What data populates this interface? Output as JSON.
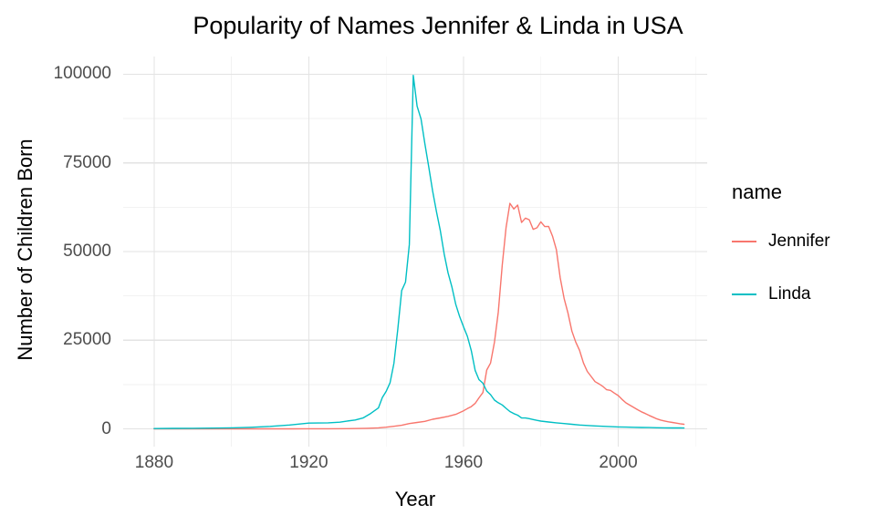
{
  "chart_data": {
    "type": "line",
    "title": "Popularity of Names Jennifer & Linda in USA",
    "xlabel": "Year",
    "ylabel": "Number of Children Born",
    "legend_title": "name",
    "legend_position": "right",
    "grid": true,
    "xlim": [
      1872,
      2023
    ],
    "ylim": [
      -5000,
      105000
    ],
    "x_ticks": [
      1880,
      1920,
      1960,
      2000
    ],
    "y_ticks": [
      0,
      25000,
      50000,
      75000,
      100000
    ],
    "x_minor_ticks": [
      1900,
      1940,
      1980,
      2020
    ],
    "y_minor_ticks": [
      12500,
      37500,
      62500,
      87500
    ],
    "series": [
      {
        "name": "Jennifer",
        "color": "#F8766D",
        "points": [
          [
            1880,
            0
          ],
          [
            1890,
            0
          ],
          [
            1900,
            0
          ],
          [
            1910,
            0
          ],
          [
            1916,
            5
          ],
          [
            1920,
            25
          ],
          [
            1925,
            40
          ],
          [
            1930,
            60
          ],
          [
            1935,
            160
          ],
          [
            1938,
            300
          ],
          [
            1940,
            470
          ],
          [
            1942,
            730
          ],
          [
            1944,
            1010
          ],
          [
            1946,
            1500
          ],
          [
            1948,
            1800
          ],
          [
            1950,
            2120
          ],
          [
            1952,
            2700
          ],
          [
            1954,
            3100
          ],
          [
            1956,
            3540
          ],
          [
            1958,
            4090
          ],
          [
            1960,
            5090
          ],
          [
            1961,
            5730
          ],
          [
            1962,
            6280
          ],
          [
            1963,
            7180
          ],
          [
            1964,
            8760
          ],
          [
            1965,
            10240
          ],
          [
            1966,
            16580
          ],
          [
            1967,
            18560
          ],
          [
            1968,
            24500
          ],
          [
            1969,
            33000
          ],
          [
            1970,
            46160
          ],
          [
            1971,
            56780
          ],
          [
            1972,
            63600
          ],
          [
            1973,
            62000
          ],
          [
            1974,
            63110
          ],
          [
            1975,
            58190
          ],
          [
            1976,
            59440
          ],
          [
            1977,
            58960
          ],
          [
            1978,
            56260
          ],
          [
            1979,
            56710
          ],
          [
            1980,
            58390
          ],
          [
            1981,
            57030
          ],
          [
            1982,
            57090
          ],
          [
            1983,
            54340
          ],
          [
            1984,
            50560
          ],
          [
            1985,
            42660
          ],
          [
            1986,
            36800
          ],
          [
            1987,
            32700
          ],
          [
            1988,
            27600
          ],
          [
            1989,
            24500
          ],
          [
            1990,
            22170
          ],
          [
            1991,
            18600
          ],
          [
            1992,
            16200
          ],
          [
            1993,
            14800
          ],
          [
            1994,
            13330
          ],
          [
            1995,
            12700
          ],
          [
            1996,
            12000
          ],
          [
            1997,
            11050
          ],
          [
            1998,
            10850
          ],
          [
            1999,
            10080
          ],
          [
            2000,
            9390
          ],
          [
            2001,
            8300
          ],
          [
            2002,
            7330
          ],
          [
            2003,
            6700
          ],
          [
            2004,
            6040
          ],
          [
            2005,
            5400
          ],
          [
            2006,
            4830
          ],
          [
            2007,
            4340
          ],
          [
            2008,
            3800
          ],
          [
            2009,
            3290
          ],
          [
            2010,
            2810
          ],
          [
            2011,
            2480
          ],
          [
            2012,
            2230
          ],
          [
            2013,
            2000
          ],
          [
            2014,
            1810
          ],
          [
            2015,
            1640
          ],
          [
            2016,
            1450
          ],
          [
            2017,
            1300
          ]
        ]
      },
      {
        "name": "Linda",
        "color": "#00BFC4",
        "points": [
          [
            1880,
            100
          ],
          [
            1885,
            130
          ],
          [
            1890,
            160
          ],
          [
            1895,
            220
          ],
          [
            1900,
            300
          ],
          [
            1905,
            460
          ],
          [
            1910,
            700
          ],
          [
            1915,
            1100
          ],
          [
            1920,
            1620
          ],
          [
            1925,
            1700
          ],
          [
            1928,
            1900
          ],
          [
            1930,
            2230
          ],
          [
            1932,
            2500
          ],
          [
            1934,
            3060
          ],
          [
            1936,
            4360
          ],
          [
            1938,
            5900
          ],
          [
            1939,
            8850
          ],
          [
            1940,
            10580
          ],
          [
            1941,
            13030
          ],
          [
            1942,
            18480
          ],
          [
            1943,
            28000
          ],
          [
            1944,
            39000
          ],
          [
            1945,
            41400
          ],
          [
            1946,
            52000
          ],
          [
            1947,
            99690
          ],
          [
            1948,
            91000
          ],
          [
            1949,
            87400
          ],
          [
            1950,
            80440
          ],
          [
            1951,
            73980
          ],
          [
            1952,
            67090
          ],
          [
            1953,
            61270
          ],
          [
            1954,
            55960
          ],
          [
            1955,
            49280
          ],
          [
            1956,
            44000
          ],
          [
            1957,
            39940
          ],
          [
            1958,
            35060
          ],
          [
            1959,
            31680
          ],
          [
            1960,
            28760
          ],
          [
            1961,
            26100
          ],
          [
            1962,
            22050
          ],
          [
            1963,
            16500
          ],
          [
            1964,
            13900
          ],
          [
            1965,
            12900
          ],
          [
            1966,
            10670
          ],
          [
            1967,
            9650
          ],
          [
            1968,
            8100
          ],
          [
            1969,
            7360
          ],
          [
            1970,
            6750
          ],
          [
            1971,
            5800
          ],
          [
            1972,
            4900
          ],
          [
            1973,
            4300
          ],
          [
            1974,
            3870
          ],
          [
            1975,
            3070
          ],
          [
            1976,
            3060
          ],
          [
            1977,
            2900
          ],
          [
            1978,
            2640
          ],
          [
            1979,
            2400
          ],
          [
            1980,
            2200
          ],
          [
            1982,
            1940
          ],
          [
            1984,
            1700
          ],
          [
            1986,
            1500
          ],
          [
            1988,
            1300
          ],
          [
            1990,
            1100
          ],
          [
            1992,
            960
          ],
          [
            1994,
            830
          ],
          [
            1996,
            720
          ],
          [
            1998,
            630
          ],
          [
            2000,
            560
          ],
          [
            2002,
            500
          ],
          [
            2004,
            440
          ],
          [
            2006,
            390
          ],
          [
            2008,
            360
          ],
          [
            2010,
            330
          ],
          [
            2012,
            300
          ],
          [
            2014,
            280
          ],
          [
            2016,
            260
          ],
          [
            2017,
            250
          ]
        ]
      }
    ]
  }
}
